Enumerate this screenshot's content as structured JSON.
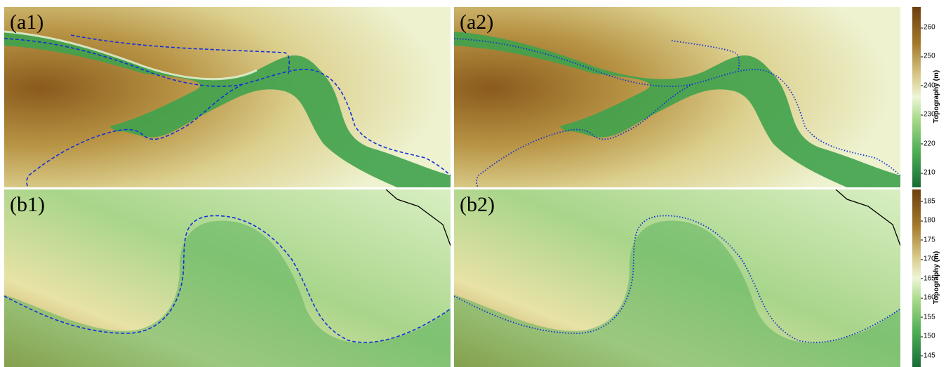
{
  "panels": {
    "a1": {
      "label": "(a1)"
    },
    "a2": {
      "label": "(a2)"
    },
    "b1": {
      "label": "(b1)"
    },
    "b2": {
      "label": "(b2)"
    }
  },
  "colorbar_top": {
    "title": "Topography (m)",
    "ticks": [
      "260",
      "250",
      "240",
      "230",
      "220",
      "210"
    ],
    "range": [
      205,
      267
    ]
  },
  "colorbar_bottom": {
    "title": "Topography (m)",
    "ticks": [
      "185",
      "180",
      "175",
      "170",
      "165",
      "160",
      "155",
      "150",
      "145"
    ],
    "range": [
      142,
      188
    ]
  },
  "colors": {
    "low": "#1f7a3a",
    "mid": "#dff0c8",
    "high": "#7a4a12",
    "channel_line": "#1530d8"
  }
}
